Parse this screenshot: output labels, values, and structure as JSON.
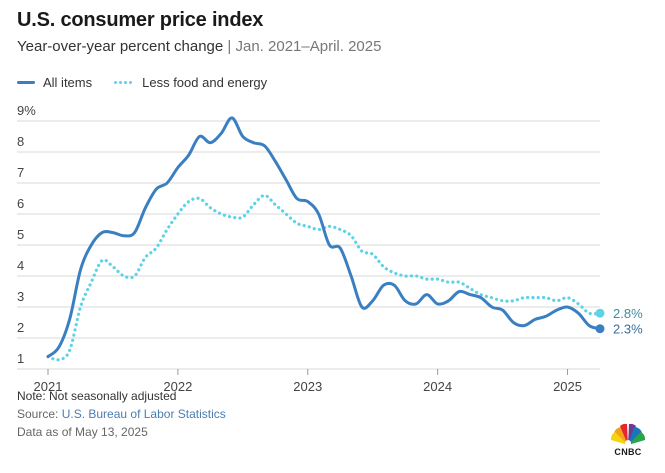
{
  "header": {
    "title": "U.S. consumer price index",
    "subtitle_main": "Year-over-year percent change",
    "subtitle_sep": "|",
    "subtitle_range": "Jan. 2021–April. 2025"
  },
  "colors": {
    "all_items": "#3a7fc1",
    "core": "#5fd3e6",
    "grid": "#d9d9d9",
    "axis_text": "#444444"
  },
  "footer": {
    "note": "Note: Not seasonally adjusted",
    "source_prefix": "Source: ",
    "source_link": "U.S. Bureau of Labor Statistics",
    "date": "Data as of May 13, 2025"
  },
  "logo": {
    "text": "CNBC",
    "icon": "nbc-peacock-icon"
  },
  "chart_data": {
    "type": "line",
    "title": "U.S. consumer price index",
    "subtitle": "Year-over-year percent change | Jan. 2021–April. 2025",
    "xlabel": "",
    "ylabel": "",
    "ylim": [
      1,
      9
    ],
    "yticks": [
      "1",
      "2",
      "3",
      "4",
      "5",
      "6",
      "7",
      "8",
      "9%"
    ],
    "xticks": [
      "2021",
      "2022",
      "2023",
      "2024",
      "2025"
    ],
    "xlim": [
      "2021-01",
      "2025-04"
    ],
    "grid": true,
    "legend_position": "top-left",
    "series": [
      {
        "name": "All items",
        "style": "solid",
        "end_label": "2.3%",
        "points": [
          [
            "2021-01",
            1.4
          ],
          [
            "2021-02",
            1.7
          ],
          [
            "2021-03",
            2.6
          ],
          [
            "2021-04",
            4.2
          ],
          [
            "2021-05",
            5.0
          ],
          [
            "2021-06",
            5.4
          ],
          [
            "2021-07",
            5.4
          ],
          [
            "2021-08",
            5.3
          ],
          [
            "2021-09",
            5.4
          ],
          [
            "2021-10",
            6.2
          ],
          [
            "2021-11",
            6.8
          ],
          [
            "2021-12",
            7.0
          ],
          [
            "2022-01",
            7.5
          ],
          [
            "2022-02",
            7.9
          ],
          [
            "2022-03",
            8.5
          ],
          [
            "2022-04",
            8.3
          ],
          [
            "2022-05",
            8.6
          ],
          [
            "2022-06",
            9.1
          ],
          [
            "2022-07",
            8.5
          ],
          [
            "2022-08",
            8.3
          ],
          [
            "2022-09",
            8.2
          ],
          [
            "2022-10",
            7.7
          ],
          [
            "2022-11",
            7.1
          ],
          [
            "2022-12",
            6.5
          ],
          [
            "2023-01",
            6.4
          ],
          [
            "2023-02",
            6.0
          ],
          [
            "2023-03",
            5.0
          ],
          [
            "2023-04",
            4.9
          ],
          [
            "2023-05",
            4.0
          ],
          [
            "2023-06",
            3.0
          ],
          [
            "2023-07",
            3.2
          ],
          [
            "2023-08",
            3.7
          ],
          [
            "2023-09",
            3.7
          ],
          [
            "2023-10",
            3.2
          ],
          [
            "2023-11",
            3.1
          ],
          [
            "2023-12",
            3.4
          ],
          [
            "2024-01",
            3.1
          ],
          [
            "2024-02",
            3.2
          ],
          [
            "2024-03",
            3.5
          ],
          [
            "2024-04",
            3.4
          ],
          [
            "2024-05",
            3.3
          ],
          [
            "2024-06",
            3.0
          ],
          [
            "2024-07",
            2.9
          ],
          [
            "2024-08",
            2.5
          ],
          [
            "2024-09",
            2.4
          ],
          [
            "2024-10",
            2.6
          ],
          [
            "2024-11",
            2.7
          ],
          [
            "2024-12",
            2.9
          ],
          [
            "2025-01",
            3.0
          ],
          [
            "2025-02",
            2.8
          ],
          [
            "2025-03",
            2.4
          ],
          [
            "2025-04",
            2.3
          ]
        ]
      },
      {
        "name": "Less food and energy",
        "style": "dotted",
        "end_label": "2.8%",
        "points": [
          [
            "2021-01",
            1.4
          ],
          [
            "2021-02",
            1.3
          ],
          [
            "2021-03",
            1.6
          ],
          [
            "2021-04",
            3.0
          ],
          [
            "2021-05",
            3.8
          ],
          [
            "2021-06",
            4.5
          ],
          [
            "2021-07",
            4.3
          ],
          [
            "2021-08",
            4.0
          ],
          [
            "2021-09",
            4.0
          ],
          [
            "2021-10",
            4.6
          ],
          [
            "2021-11",
            4.9
          ],
          [
            "2021-12",
            5.5
          ],
          [
            "2022-01",
            6.0
          ],
          [
            "2022-02",
            6.4
          ],
          [
            "2022-03",
            6.5
          ],
          [
            "2022-04",
            6.2
          ],
          [
            "2022-05",
            6.0
          ],
          [
            "2022-06",
            5.9
          ],
          [
            "2022-07",
            5.9
          ],
          [
            "2022-08",
            6.3
          ],
          [
            "2022-09",
            6.6
          ],
          [
            "2022-10",
            6.3
          ],
          [
            "2022-11",
            6.0
          ],
          [
            "2022-12",
            5.7
          ],
          [
            "2023-01",
            5.6
          ],
          [
            "2023-02",
            5.5
          ],
          [
            "2023-03",
            5.6
          ],
          [
            "2023-04",
            5.5
          ],
          [
            "2023-05",
            5.3
          ],
          [
            "2023-06",
            4.8
          ],
          [
            "2023-07",
            4.7
          ],
          [
            "2023-08",
            4.3
          ],
          [
            "2023-09",
            4.1
          ],
          [
            "2023-10",
            4.0
          ],
          [
            "2023-11",
            4.0
          ],
          [
            "2023-12",
            3.9
          ],
          [
            "2024-01",
            3.9
          ],
          [
            "2024-02",
            3.8
          ],
          [
            "2024-03",
            3.8
          ],
          [
            "2024-04",
            3.6
          ],
          [
            "2024-05",
            3.4
          ],
          [
            "2024-06",
            3.3
          ],
          [
            "2024-07",
            3.2
          ],
          [
            "2024-08",
            3.2
          ],
          [
            "2024-09",
            3.3
          ],
          [
            "2024-10",
            3.3
          ],
          [
            "2024-11",
            3.3
          ],
          [
            "2024-12",
            3.2
          ],
          [
            "2025-01",
            3.3
          ],
          [
            "2025-02",
            3.1
          ],
          [
            "2025-03",
            2.8
          ],
          [
            "2025-04",
            2.8
          ]
        ]
      }
    ]
  }
}
